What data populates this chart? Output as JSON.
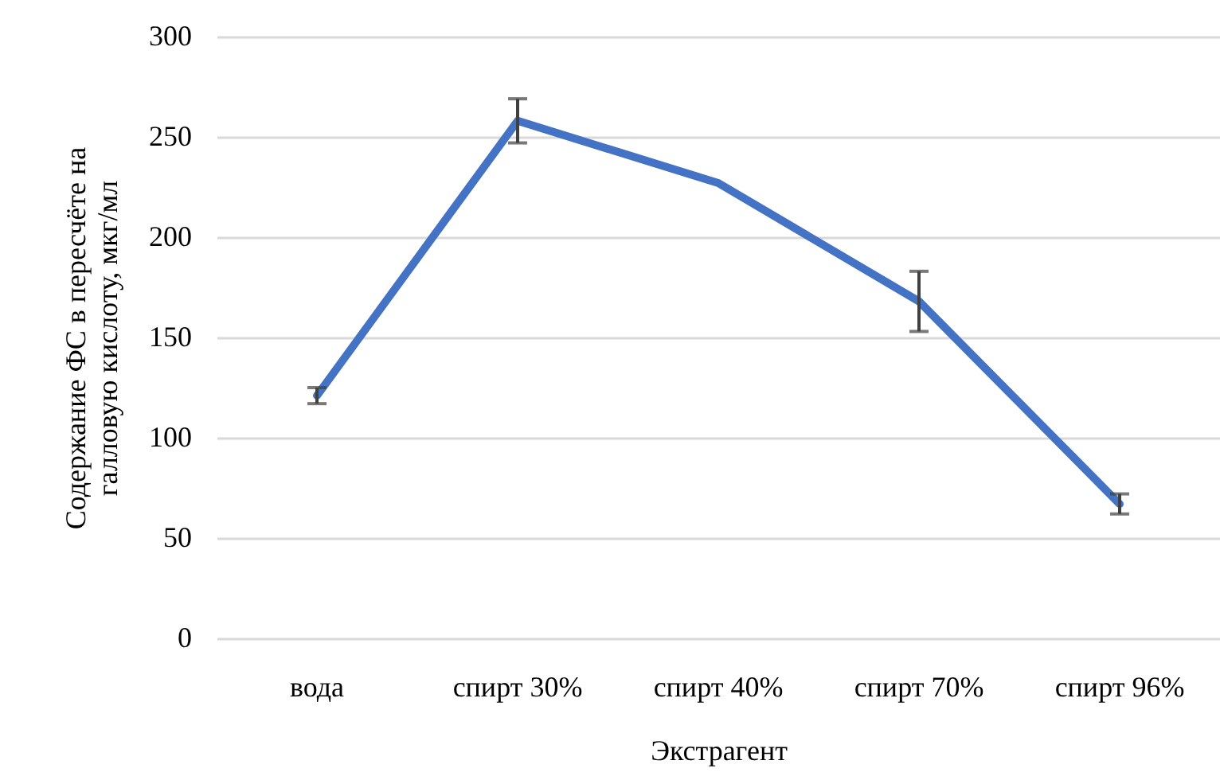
{
  "chart_data": {
    "type": "line",
    "xlabel": "Экстрагент",
    "ylabel": "Содержание ФС в пересчёте на галловую кислоту, мкг/мл",
    "categories": [
      "вода",
      "спирт 30%",
      "спирт 40%",
      "спирт 70%",
      "спирт 96%"
    ],
    "series": [
      {
        "color": "#4472c4",
        "values": [
          121,
          258,
          227,
          168,
          67
        ],
        "errors": [
          4,
          11,
          null,
          15,
          5
        ]
      }
    ],
    "ylim": [
      0,
      300
    ],
    "yticks": [
      0,
      50,
      100,
      150,
      200,
      250,
      300
    ],
    "grid": "y",
    "marker": "none",
    "line_style": "solid"
  }
}
